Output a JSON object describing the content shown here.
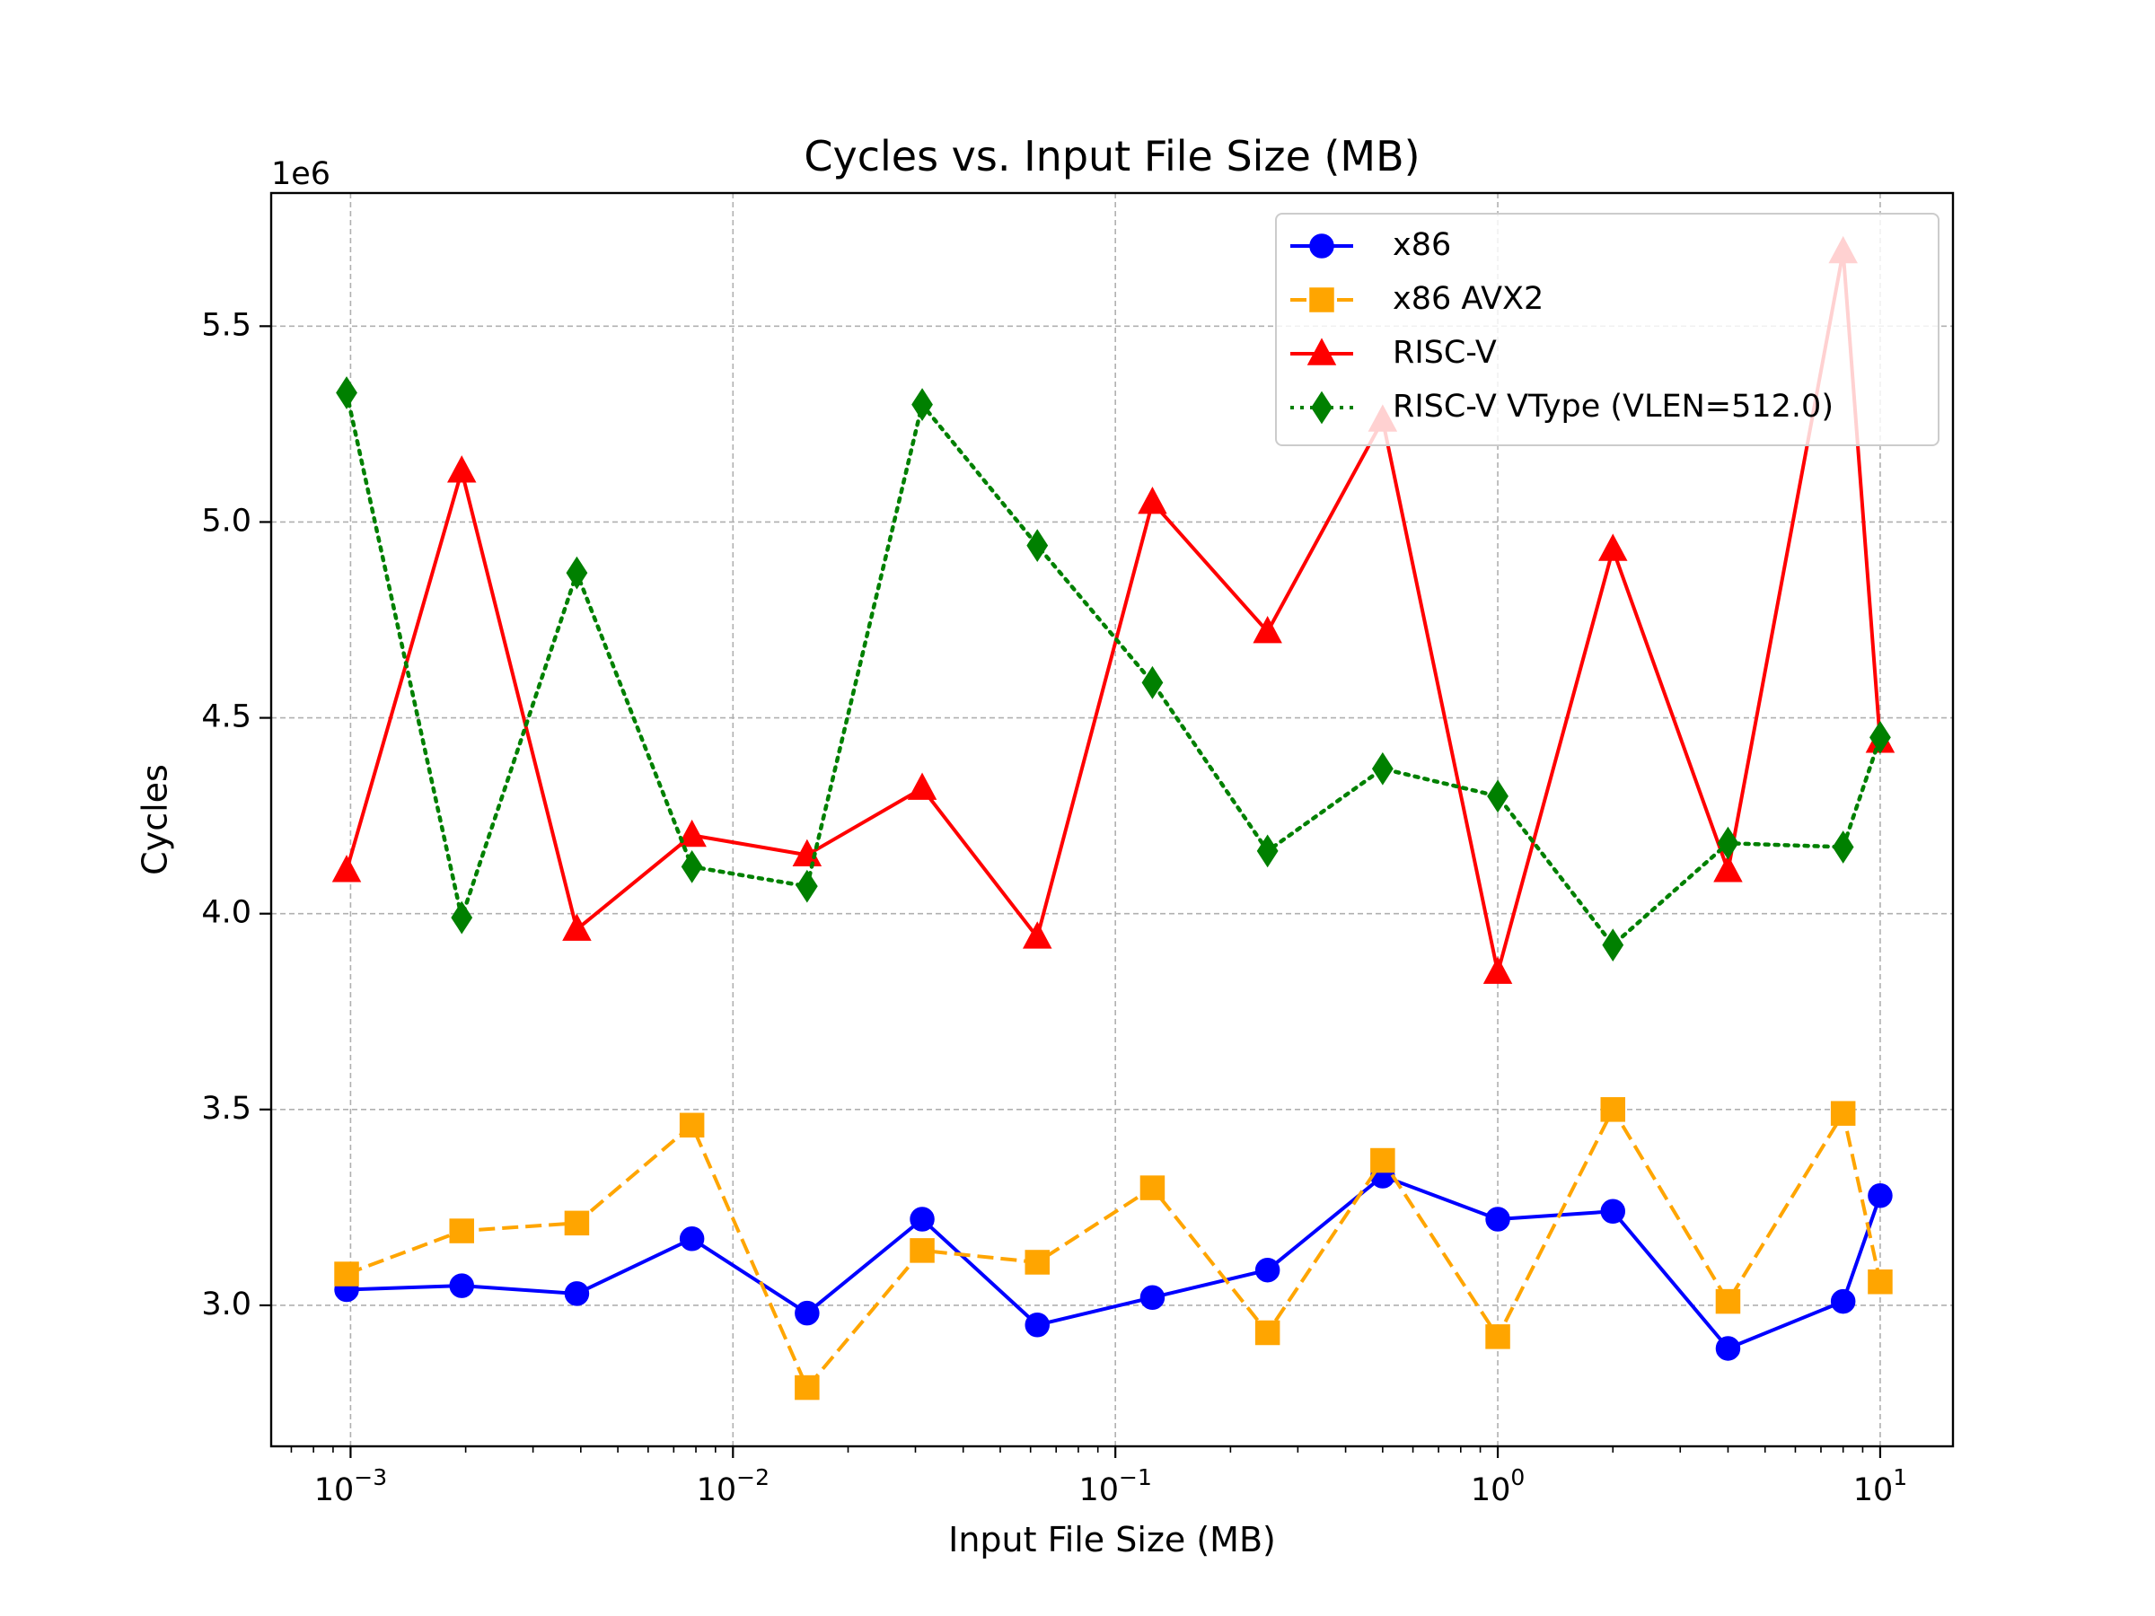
{
  "chart_data": {
    "type": "line",
    "title": "Cycles vs. Input File Size (MB)",
    "xlabel": "Input File Size (MB)",
    "ylabel": "Cycles",
    "y_offset_label": "1e6",
    "xscale": "log",
    "xlim": [
      0.00062,
      15.5
    ],
    "ylim": [
      2.64,
      5.84
    ],
    "grid": true,
    "legend_position": "top-right",
    "x": [
      0.0009765625,
      0.001953125,
      0.00390625,
      0.0078125,
      0.015625,
      0.03125,
      0.0625,
      0.125,
      0.25,
      0.5,
      1,
      2,
      4,
      8,
      10
    ],
    "x_ticks": [
      {
        "value": 0.001,
        "base": "10",
        "exp": "−3"
      },
      {
        "value": 0.01,
        "base": "10",
        "exp": "−2"
      },
      {
        "value": 0.1,
        "base": "10",
        "exp": "−1"
      },
      {
        "value": 1,
        "base": "10",
        "exp": "0"
      },
      {
        "value": 10,
        "base": "10",
        "exp": "1"
      }
    ],
    "y_ticks": [
      {
        "value": 3.0,
        "label": "3.0"
      },
      {
        "value": 3.5,
        "label": "3.5"
      },
      {
        "value": 4.0,
        "label": "4.0"
      },
      {
        "value": 4.5,
        "label": "4.5"
      },
      {
        "value": 5.0,
        "label": "5.0"
      },
      {
        "value": 5.5,
        "label": "5.5"
      }
    ],
    "series": [
      {
        "name": "x86",
        "color": "#0000ff",
        "linestyle": "solid",
        "marker": "circle",
        "values": [
          3.04,
          3.05,
          3.03,
          3.17,
          2.98,
          3.22,
          2.95,
          3.02,
          3.09,
          3.33,
          3.22,
          3.24,
          2.89,
          3.01,
          3.28
        ]
      },
      {
        "name": "x86 AVX2",
        "color": "#ffa500",
        "linestyle": "dashed",
        "marker": "square",
        "values": [
          3.08,
          3.19,
          3.21,
          3.46,
          2.79,
          3.14,
          3.11,
          3.3,
          2.93,
          3.37,
          2.92,
          3.5,
          3.01,
          3.49,
          3.06
        ]
      },
      {
        "name": "RISC-V",
        "color": "#ff0000",
        "linestyle": "solid",
        "marker": "triangle",
        "values": [
          4.11,
          5.13,
          3.96,
          4.2,
          4.15,
          4.32,
          3.94,
          5.05,
          4.72,
          5.26,
          3.85,
          4.93,
          4.11,
          5.69,
          4.44
        ]
      },
      {
        "name": "RISC-V VType (VLEN=512.0)",
        "color": "#008000",
        "linestyle": "dotted",
        "marker": "diamond",
        "values": [
          5.33,
          3.99,
          4.87,
          4.12,
          4.07,
          5.3,
          4.94,
          4.59,
          4.16,
          4.37,
          4.3,
          3.92,
          4.18,
          4.17,
          4.45
        ]
      }
    ]
  }
}
